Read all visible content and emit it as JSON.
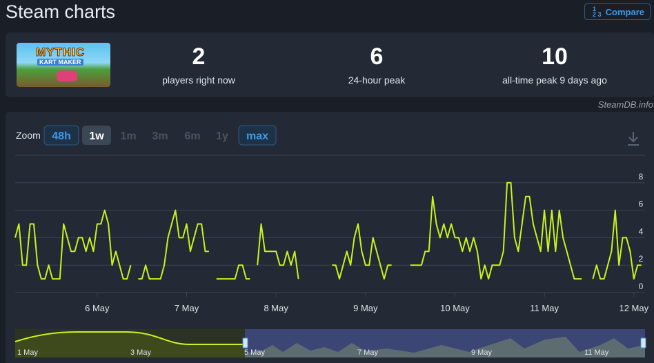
{
  "header": {
    "title": "Steam charts",
    "compare": "Compare"
  },
  "stats": {
    "logo": [
      "MYTHIC",
      "KART MAKER"
    ],
    "items": [
      {
        "value": 2,
        "label": "players right now"
      },
      {
        "value": 6,
        "label": "24-hour peak"
      },
      {
        "value": 10,
        "label": "all-time peak 9 days ago"
      }
    ]
  },
  "credit": "SteamDB.info",
  "zoom": {
    "label": "Zoom",
    "options": [
      "48h",
      "1w",
      "1m",
      "3m",
      "6m",
      "1y",
      "max"
    ]
  },
  "chart_data": {
    "type": "line",
    "x": [
      0,
      1,
      2,
      3,
      4,
      5,
      6,
      7,
      8,
      9,
      10,
      11,
      12,
      13,
      14,
      15,
      16,
      17,
      18,
      19,
      20,
      21,
      22,
      23,
      24,
      25,
      26,
      27,
      28,
      29,
      30,
      31,
      32,
      33,
      34,
      35,
      36,
      37,
      38,
      39,
      40,
      41,
      42,
      43,
      44,
      45,
      46,
      47,
      48,
      49,
      50,
      51,
      52,
      53,
      54,
      55,
      56,
      57,
      58,
      59,
      60,
      61,
      62,
      63,
      64,
      65,
      66,
      67,
      68,
      69,
      70,
      71,
      72,
      73,
      74,
      75,
      76,
      77,
      78,
      79,
      80,
      81,
      82,
      83,
      84,
      85,
      86,
      87,
      88,
      89,
      90,
      91,
      92,
      93,
      94,
      95,
      96,
      97,
      98,
      99,
      100,
      101,
      102,
      103,
      104,
      105,
      106,
      107,
      108,
      109,
      110,
      111,
      112,
      113,
      114,
      115,
      116,
      117,
      118,
      119,
      120,
      121,
      122,
      123,
      124,
      125,
      126,
      127,
      128,
      129,
      130,
      131,
      132,
      133,
      134,
      135,
      136,
      137,
      138,
      139,
      140,
      141,
      142,
      143,
      144,
      145,
      146,
      147,
      148,
      149,
      150,
      151,
      152,
      153,
      154,
      155,
      156,
      157,
      158,
      159,
      160,
      161,
      162,
      163,
      164,
      165,
      166,
      167,
      168
    ],
    "series": [
      {
        "color": "#c9f31d",
        "values": [
          4,
          5,
          2,
          2,
          5,
          5,
          2,
          1,
          1,
          2,
          1,
          1,
          1,
          5,
          4,
          3,
          3,
          4,
          4,
          3,
          4,
          3,
          5,
          5,
          6,
          5,
          2,
          3,
          2,
          1,
          1,
          2,
          null,
          1,
          1,
          2,
          1,
          1,
          1,
          1,
          2,
          4,
          5,
          6,
          4,
          4,
          5,
          3,
          4,
          5,
          5,
          3,
          3,
          null,
          1,
          1,
          1,
          1,
          1,
          1,
          2,
          2,
          1,
          1,
          null,
          2,
          5,
          3,
          3,
          3,
          3,
          2,
          2,
          3,
          2,
          3,
          1,
          null,
          null,
          null,
          null,
          null,
          null,
          null,
          null,
          2,
          2,
          1,
          2,
          3,
          2,
          4,
          5,
          3,
          2,
          2,
          4,
          3,
          2,
          1,
          2,
          2,
          null,
          null,
          null,
          null,
          2,
          2,
          2,
          2,
          3,
          3,
          7,
          5,
          4,
          5,
          4,
          5,
          4,
          4,
          3,
          4,
          3,
          4,
          3,
          1,
          2,
          1,
          2,
          2,
          2,
          3,
          8,
          8,
          4,
          3,
          5,
          7,
          7,
          5,
          4,
          3,
          6,
          3,
          6,
          3,
          6,
          4,
          3,
          2,
          1,
          1,
          1,
          null,
          null,
          1,
          2,
          1,
          1,
          2,
          3,
          6,
          2,
          4,
          4,
          3,
          1,
          2,
          2
        ]
      }
    ],
    "xlim": [
      0,
      169
    ],
    "xticks": [
      {
        "value": 22,
        "label": "6 May"
      },
      {
        "value": 46,
        "label": "7 May"
      },
      {
        "value": 70,
        "label": "8 May"
      },
      {
        "value": 94,
        "label": "9 May"
      },
      {
        "value": 118,
        "label": "10 May"
      },
      {
        "value": 142,
        "label": "11 May"
      },
      {
        "value": 166,
        "label": "12 May"
      }
    ],
    "ylim": [
      0,
      10
    ],
    "yticks": [
      0,
      2,
      4,
      6,
      8
    ],
    "grid": true
  },
  "navigator": {
    "labels": [
      "1 May",
      "3 May",
      "5 May",
      "7 May",
      "9 May",
      "11 May"
    ]
  }
}
